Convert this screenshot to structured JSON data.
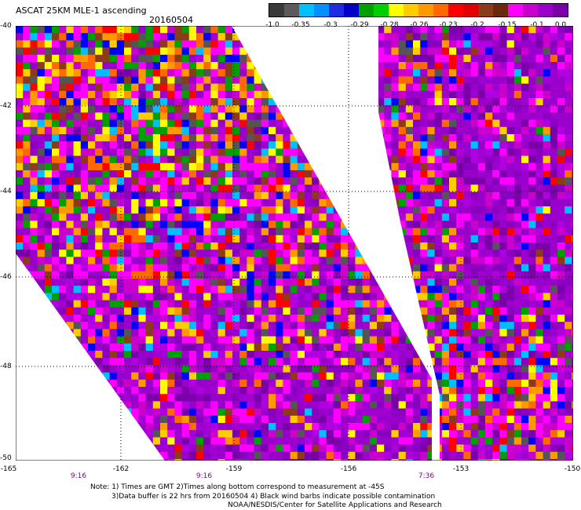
{
  "header": {
    "title": "ASCAT 25KM MLE-1 ascending",
    "date": "20160504"
  },
  "colorbar": {
    "colors": [
      "#3a3a3a",
      "#5b5b5b",
      "#00bfff",
      "#0090ff",
      "#1e2be0",
      "#0000c8",
      "#00a000",
      "#00d000",
      "#ffff00",
      "#ffcc00",
      "#ff9900",
      "#ff6a00",
      "#ff0000",
      "#e00000",
      "#8b3a1a",
      "#6b2a10",
      "#ff00ff",
      "#cc00cc",
      "#9900cc",
      "#7a00aa"
    ],
    "labels": [
      "-1.0",
      "-0.35",
      "-0.3",
      "-0.29",
      "-0.28",
      "-0.26",
      "-0.23",
      "-0.2",
      "-0.15",
      "-0.1",
      "0.0"
    ]
  },
  "axes": {
    "lat_labels": [
      "-40",
      "-42",
      "-44",
      "-46",
      "-48",
      "-50"
    ],
    "lon_labels": [
      "-165",
      "-162",
      "-159",
      "-156",
      "-153",
      "-150"
    ],
    "time_labels": [
      "9:16",
      "9:16",
      "7:36"
    ]
  },
  "notes": {
    "line1": "Note: 1) Times are GMT 2)Times along bottom correspond to measurement at -45S",
    "line2": "3)Data buffer is 22 hrs from 20160504 4) Black wind barbs indicate possible contamination",
    "line3": "NOAA/NESDIS/Center for Satellite Applications and Research"
  }
}
